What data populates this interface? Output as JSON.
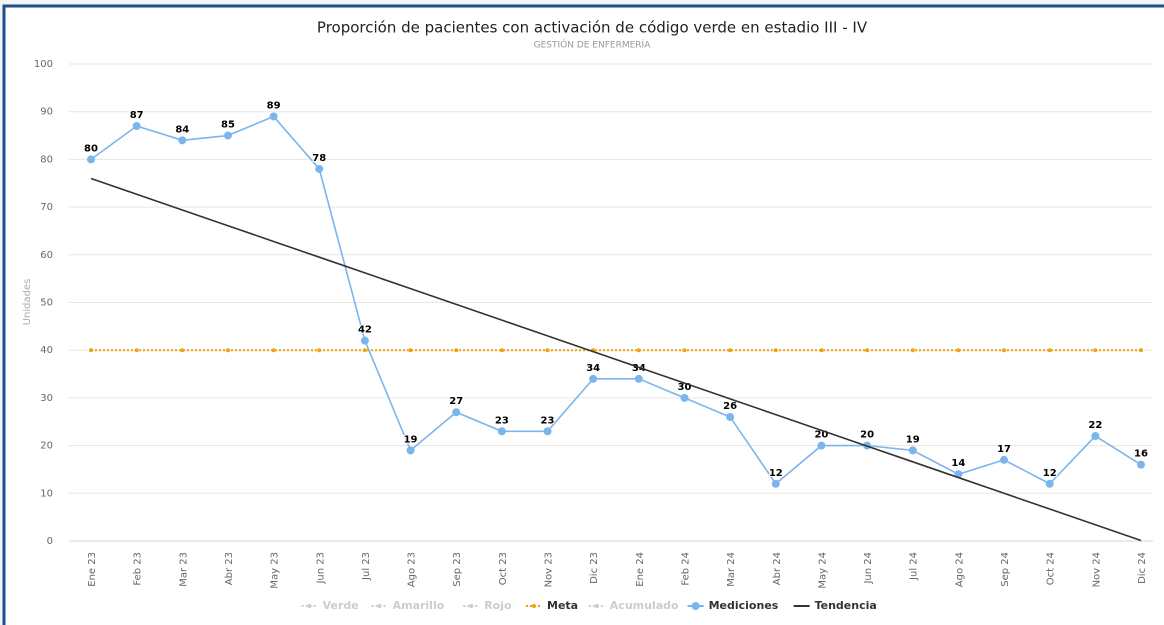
{
  "chart_data": {
    "type": "line",
    "title": "Proporción de pacientes con activación de código verde en estadio III - IV",
    "subtitle": "GESTIÓN DE ENFERMERÍA",
    "y_label": "Unidades",
    "categories": [
      "Ene 23",
      "Feb 23",
      "Mar 23",
      "Abr 23",
      "May 23",
      "Jun 23",
      "Jul 23",
      "Ago 23",
      "Sep 23",
      "Oct 23",
      "Nov 23",
      "Dic 23",
      "Ene 24",
      "Feb 24",
      "Mar 24",
      "Abr 24",
      "May 24",
      "Jun 24",
      "Jul 24",
      "Ago 24",
      "Sep 24",
      "Oct 24",
      "Nov 24",
      "Dic 24"
    ],
    "ylim": [
      0,
      100
    ],
    "yticks": [
      0,
      10,
      20,
      30,
      40,
      50,
      60,
      70,
      80,
      90,
      100
    ],
    "grid": true,
    "legend": "bottom",
    "series": [
      {
        "name": "Verde",
        "visible": false
      },
      {
        "name": "Amarillo",
        "visible": false
      },
      {
        "name": "Rojo",
        "visible": false
      },
      {
        "name": "Meta",
        "color": "#f0a30a",
        "style": "dotted",
        "markers": true,
        "values": [
          40,
          40,
          40,
          40,
          40,
          40,
          40,
          40,
          40,
          40,
          40,
          40,
          40,
          40,
          40,
          40,
          40,
          40,
          40,
          40,
          40,
          40,
          40,
          40
        ]
      },
      {
        "name": "Acumulado",
        "visible": false
      },
      {
        "name": "Mediciones",
        "color": "#7cb5ec",
        "markers": true,
        "data_labels": true,
        "values": [
          80,
          87,
          84,
          85,
          89,
          78,
          42,
          19,
          27,
          23,
          23,
          34,
          34,
          30,
          26,
          12,
          20,
          20,
          19,
          14,
          17,
          12,
          22,
          16
        ]
      },
      {
        "name": "Tendencia",
        "color": "#333333",
        "values": [
          76.0,
          72.7,
          69.4,
          66.1,
          62.8,
          59.5,
          56.2,
          52.9,
          49.6,
          46.3,
          43.0,
          39.7,
          36.4,
          33.1,
          29.8,
          26.5,
          23.2,
          19.9,
          16.6,
          13.3,
          10.0,
          6.7,
          3.4,
          0.1
        ]
      }
    ]
  }
}
